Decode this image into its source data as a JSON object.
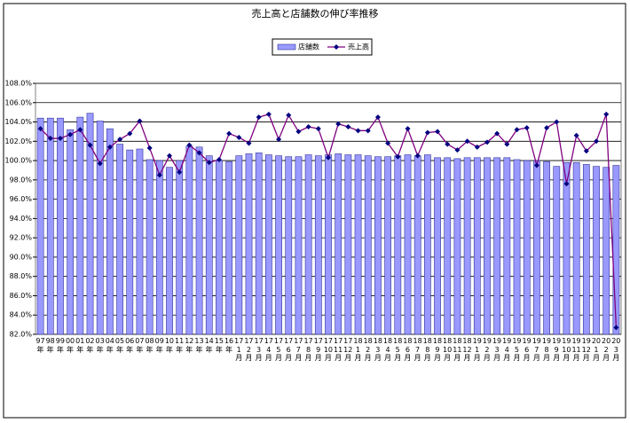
{
  "chart_data": {
    "type": "bar",
    "title": "売上高と店舗数の伸び率推移",
    "categories": [
      "97 年",
      "98 年",
      "99 年",
      "00 年",
      "01 年",
      "02 年",
      "03 年",
      "04 年",
      "05 年",
      "06 年",
      "07 年",
      "08 年",
      "09 年",
      "10 年",
      "11 年",
      "12 年",
      "13 年",
      "14 年",
      "15 年",
      "16 年",
      "17 1 月",
      "17 2 月",
      "17 3 月",
      "17 4 月",
      "17 5 月",
      "17 6 月",
      "17 7 月",
      "17 8 月",
      "17 9 月",
      "17 10 月",
      "17 11 月",
      "17 12 月",
      "18 1 月",
      "18 2 月",
      "18 3 月",
      "18 4 月",
      "18 5 月",
      "18 6 月",
      "18 7 月",
      "18 8 月",
      "18 9 月",
      "18 10 月",
      "18 11 月",
      "18 12 月",
      "19 1 月",
      "19 2 月",
      "19 3 月",
      "19 4 月",
      "19 5 月",
      "19 6 月",
      "19 7 月",
      "19 8 月",
      "19 9 月",
      "19 10 月",
      "19 11 月",
      "19 12 月",
      "20 1 月",
      "20 2 月",
      "20 3 月"
    ],
    "series": [
      {
        "name": "店舗数",
        "type": "bar",
        "color": "#9999ff",
        "edge": "#333399",
        "values": [
          104.4,
          104.4,
          104.4,
          103.2,
          104.5,
          104.9,
          104.1,
          103.3,
          101.7,
          101.1,
          101.2,
          100.1,
          100.0,
          99.3,
          100.0,
          101.5,
          101.4,
          100.5,
          100.0,
          99.9,
          100.5,
          100.7,
          100.8,
          100.6,
          100.5,
          100.4,
          100.4,
          100.6,
          100.5,
          100.6,
          100.7,
          100.6,
          100.6,
          100.5,
          100.4,
          100.4,
          100.5,
          100.6,
          100.5,
          100.6,
          100.3,
          100.3,
          100.2,
          100.3,
          100.3,
          100.3,
          100.3,
          100.3,
          100.1,
          100.0,
          100.0,
          99.9,
          99.4,
          99.8,
          99.8,
          99.6,
          99.4,
          99.3,
          99.5
        ]
      },
      {
        "name": "売上高",
        "type": "line",
        "color": "#800080",
        "marker_color": "#000080",
        "values": [
          103.3,
          102.3,
          102.3,
          102.7,
          103.2,
          101.6,
          99.7,
          101.4,
          102.2,
          102.8,
          104.1,
          101.3,
          98.5,
          100.5,
          98.8,
          101.6,
          100.8,
          99.8,
          100.1,
          102.8,
          102.4,
          101.8,
          104.5,
          104.8,
          102.2,
          104.7,
          103.0,
          103.5,
          103.3,
          100.3,
          103.8,
          103.5,
          103.1,
          103.1,
          104.5,
          101.8,
          100.4,
          103.3,
          100.5,
          102.9,
          103.0,
          101.7,
          101.1,
          102.0,
          101.4,
          101.9,
          102.8,
          101.7,
          103.2,
          103.4,
          99.5,
          103.4,
          104.0,
          97.6,
          102.6,
          101.0,
          102.0,
          104.8,
          82.7
        ]
      }
    ],
    "ylim": [
      82,
      108
    ],
    "yticks": [
      {
        "value": 82,
        "label": "82.0%"
      },
      {
        "value": 84,
        "label": "84.0%"
      },
      {
        "value": 86,
        "label": "86.0%"
      },
      {
        "value": 88,
        "label": "88.0%"
      },
      {
        "value": 90,
        "label": "90.0%"
      },
      {
        "value": 92,
        "label": "92.0%"
      },
      {
        "value": 94,
        "label": "94.0%"
      },
      {
        "value": 96,
        "label": "96.0%"
      },
      {
        "value": 98,
        "label": "98.0%"
      },
      {
        "value": 100,
        "label": "100.0%"
      },
      {
        "value": 102,
        "label": "102.0%"
      },
      {
        "value": 104,
        "label": "104.0%"
      },
      {
        "value": 106,
        "label": "106.0%"
      },
      {
        "value": 108,
        "label": "108.0%"
      }
    ],
    "grid": true,
    "legend": "top"
  }
}
